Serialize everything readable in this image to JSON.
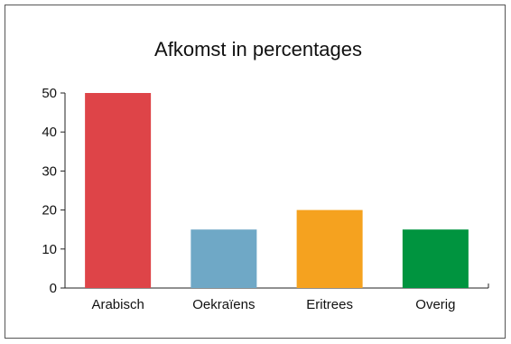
{
  "chart_data": {
    "type": "bar",
    "title": "Afkomst in percentages",
    "xlabel": "",
    "ylabel": "",
    "categories": [
      "Arabisch",
      "Oekraïens",
      "Eritrees",
      "Overig"
    ],
    "values": [
      50,
      15,
      20,
      15
    ],
    "colors": [
      "#de4448",
      "#6fa8c6",
      "#f5a21f",
      "#00943f"
    ],
    "ylim": [
      0,
      50
    ],
    "yticks": [
      0,
      10,
      20,
      30,
      40,
      50
    ],
    "grid": false,
    "legend": "none"
  }
}
